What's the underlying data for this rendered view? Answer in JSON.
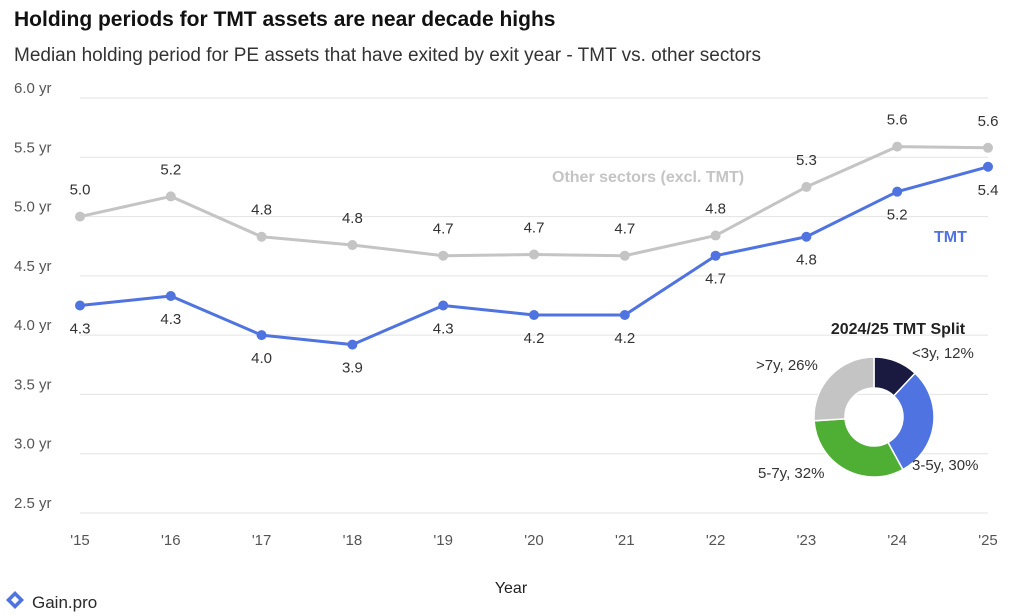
{
  "title": "Holding periods for TMT assets are near decade highs",
  "subtitle": "Median holding period for PE assets that have exited by exit year - TMT vs. other sectors",
  "footer": {
    "logo_text": "Gain.pro",
    "logo_icon": "gain-logo-icon"
  },
  "chart_data": [
    {
      "type": "line",
      "categories": [
        "'15",
        "'16",
        "'17",
        "'18",
        "'19",
        "'20",
        "'21",
        "'22",
        "'23",
        "'24",
        "'25"
      ],
      "xlabel": "Year",
      "ylabel": "",
      "ylim": [
        2.5,
        6.0
      ],
      "yticks": [
        2.5,
        3.0,
        3.5,
        4.0,
        4.5,
        5.0,
        5.5,
        6.0
      ],
      "ytick_labels": [
        "2.5 yr",
        "3.0 yr",
        "3.5 yr",
        "4.0 yr",
        "4.5 yr",
        "5.0 yr",
        "5.5 yr",
        "6.0 yr"
      ],
      "grid": true,
      "series": [
        {
          "name": "Other sectors (excl. TMT)",
          "color": "#c4c4c4",
          "values": [
            5.0,
            5.17,
            4.83,
            4.76,
            4.67,
            4.68,
            4.67,
            4.84,
            5.25,
            5.59,
            5.58
          ],
          "labels": [
            "5.0",
            "5.2",
            "4.8",
            "4.8",
            "4.7",
            "4.7",
            "4.7",
            "4.8",
            "5.3",
            "5.6",
            "5.6"
          ]
        },
        {
          "name": "TMT",
          "color": "#4f73e0",
          "values": [
            4.25,
            4.33,
            4.0,
            3.92,
            4.25,
            4.17,
            4.17,
            4.67,
            4.83,
            5.21,
            5.42
          ],
          "labels": [
            "4.3",
            "4.3",
            "4.0",
            "3.9",
            "4.3",
            "4.2",
            "4.2",
            "4.7",
            "4.8",
            "5.2",
            "5.4"
          ]
        }
      ]
    },
    {
      "type": "pie",
      "title": "2024/25 TMT Split",
      "slices": [
        {
          "label": "<3y, 12%",
          "value": 12,
          "color": "#1a1a40"
        },
        {
          "label": "3-5y, 30%",
          "value": 30,
          "color": "#4f73e0"
        },
        {
          "label": "5-7y, 32%",
          "value": 32,
          "color": "#4fae34"
        },
        {
          "label": ">7y, 26%",
          "value": 26,
          "color": "#c4c4c4"
        }
      ]
    }
  ]
}
